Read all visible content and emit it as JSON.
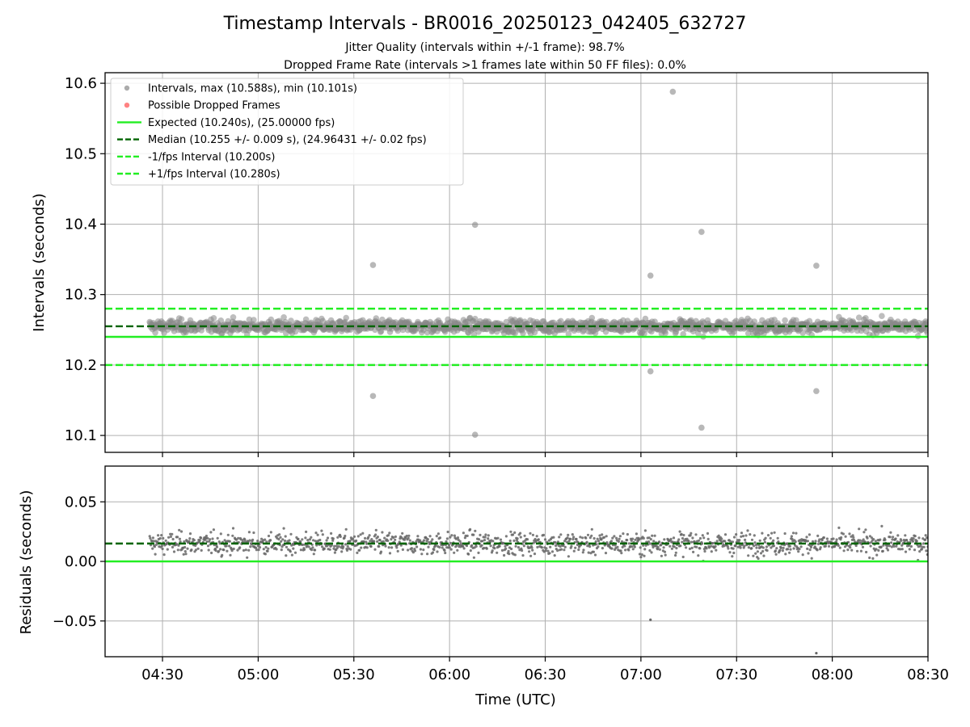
{
  "figure": {
    "title": "Timestamp Intervals - BR0016_20250123_042405_632727",
    "subtitle_1": "Jitter Quality (intervals within +/-1 frame): 98.7%",
    "subtitle_2": "Dropped Frame Rate (intervals >1 frames late within 50 FF files): 0.0%"
  },
  "colors": {
    "points": "#888888",
    "dropped": "#ff4d4d",
    "expected": "#22ee22",
    "median": "#006400",
    "fps_bounds": "#22ee22",
    "grid": "#b0b0b0"
  },
  "chart_data": [
    {
      "type": "scatter",
      "title": "Timestamp Intervals - BR0016_20250123_042405_632727",
      "xlabel": "",
      "ylabel": "Intervals (seconds)",
      "x_ticks": [
        "04:30",
        "05:00",
        "05:30",
        "06:00",
        "06:30",
        "07:00",
        "07:30",
        "08:00",
        "08:30"
      ],
      "xlim": [
        "04:12",
        "08:30"
      ],
      "ylim": [
        10.076,
        10.615
      ],
      "y_ticks": [
        10.1,
        10.2,
        10.3,
        10.4,
        10.5,
        10.6
      ],
      "y_tick_labels": [
        "10.1",
        "10.2",
        "10.3",
        "10.4",
        "10.5",
        "10.6"
      ],
      "grid": true,
      "legend_position": "top-left",
      "legend": [
        {
          "label": "Intervals, max (10.588s), min (10.101s)",
          "kind": "marker",
          "color": "#888888"
        },
        {
          "label": "Possible Dropped Frames",
          "kind": "marker",
          "color": "#ff4d4d"
        },
        {
          "label": "Expected (10.240s), (25.00000 fps)",
          "kind": "line",
          "color": "#22ee22"
        },
        {
          "label": "Median (10.255 +/- 0.009 s), (24.96431 +/- 0.02 fps)",
          "kind": "dashed",
          "color": "#006400"
        },
        {
          "label": "-1/fps Interval (10.200s)",
          "kind": "dashed",
          "color": "#22ee22"
        },
        {
          "label": "+1/fps Interval (10.280s)",
          "kind": "dashed",
          "color": "#22ee22"
        }
      ],
      "reference_lines": {
        "expected": 10.24,
        "median": 10.255,
        "minus_1fps": 10.2,
        "plus_1fps": 10.28
      },
      "interval_range": {
        "min": 10.101,
        "max": 10.588
      },
      "outliers": [
        {
          "time": "05:36",
          "value": 10.342
        },
        {
          "time": "05:36",
          "value": 10.156
        },
        {
          "time": "06:08",
          "value": 10.399
        },
        {
          "time": "06:08",
          "value": 10.101
        },
        {
          "time": "07:03",
          "value": 10.327
        },
        {
          "time": "07:03",
          "value": 10.191
        },
        {
          "time": "07:10",
          "value": 10.588
        },
        {
          "time": "07:19",
          "value": 10.389
        },
        {
          "time": "07:19",
          "value": 10.111
        },
        {
          "time": "07:55",
          "value": 10.341
        },
        {
          "time": "07:55",
          "value": 10.163
        }
      ],
      "dense_band": {
        "time_start": "04:26",
        "time_end": "08:30",
        "center": 10.255,
        "low": 10.226,
        "high": 10.284
      }
    },
    {
      "type": "scatter",
      "xlabel": "Time (UTC)",
      "ylabel": "Residuals (seconds)",
      "x_ticks": [
        "04:30",
        "05:00",
        "05:30",
        "06:00",
        "06:30",
        "07:00",
        "07:30",
        "08:00",
        "08:30"
      ],
      "xlim": [
        "04:12",
        "08:30"
      ],
      "ylim": [
        -0.08,
        0.08
      ],
      "y_ticks": [
        0.05,
        0.0,
        -0.05
      ],
      "y_tick_labels": [
        "0.05",
        "0.00",
        "−0.05"
      ],
      "grid": true,
      "reference_lines": {
        "zero": 0.0,
        "median": 0.015
      },
      "outliers": [
        {
          "time": "07:03",
          "value": -0.049
        },
        {
          "time": "07:55",
          "value": -0.077
        }
      ],
      "dense_band": {
        "time_start": "04:26",
        "time_end": "08:30",
        "center": 0.015,
        "low": -0.013,
        "high": 0.044
      }
    }
  ]
}
